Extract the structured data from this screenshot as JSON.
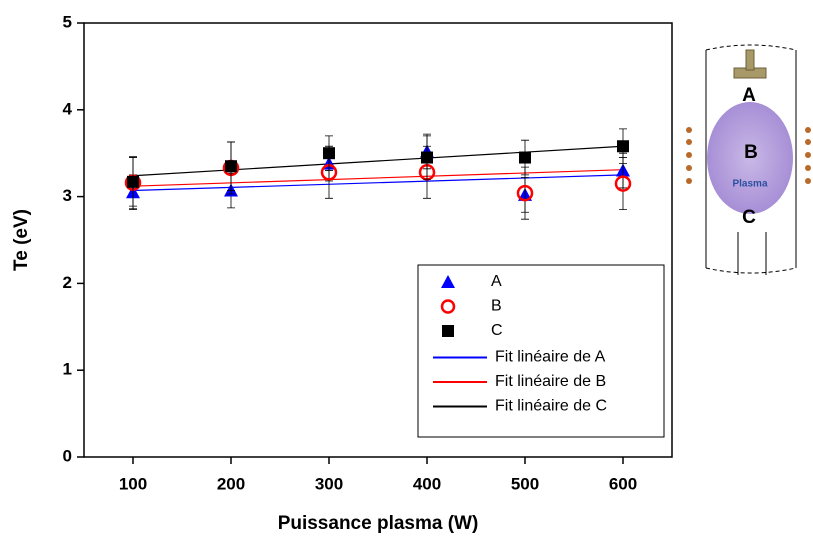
{
  "chart_data": {
    "type": "scatter",
    "x_label": "Puissance plasma (W)",
    "y_label": "Te (eV)",
    "x": [
      100,
      200,
      300,
      400,
      500,
      600
    ],
    "xlim": [
      50,
      650
    ],
    "xticks": [
      100,
      200,
      300,
      400,
      500,
      600
    ],
    "ylim": [
      0,
      5
    ],
    "yticks": [
      0,
      1,
      2,
      3,
      4,
      5
    ],
    "series": [
      {
        "name": "A",
        "color": "#0000ff",
        "marker": "triangle",
        "values": [
          3.05,
          3.07,
          3.38,
          3.52,
          3.02,
          3.3
        ],
        "errors": [
          0.2,
          0.2,
          0.2,
          0.2,
          0.2,
          0.2
        ]
      },
      {
        "name": "B",
        "color": "#ff0000",
        "marker": "circle",
        "values": [
          3.16,
          3.33,
          3.28,
          3.28,
          3.04,
          3.15
        ],
        "errors": [
          0.3,
          0.3,
          0.3,
          0.3,
          0.3,
          0.3
        ]
      },
      {
        "name": "C",
        "color": "#000000",
        "marker": "square",
        "values": [
          3.17,
          3.35,
          3.5,
          3.45,
          3.45,
          3.58
        ],
        "errors": [
          0.28,
          0.28,
          0.2,
          0.25,
          0.2,
          0.2
        ]
      }
    ],
    "fits": [
      {
        "name": "Fit linéaire de A",
        "color": "#0000ff",
        "x": [
          100,
          600
        ],
        "values": [
          3.07,
          3.25
        ]
      },
      {
        "name": "Fit linéaire de B",
        "color": "#ff0000",
        "x": [
          100,
          600
        ],
        "values": [
          3.12,
          3.31
        ]
      },
      {
        "name": "Fit linéaire de C",
        "color": "#000000",
        "x": [
          100,
          600
        ],
        "values": [
          3.24,
          3.58
        ]
      }
    ]
  },
  "inset": {
    "labels": [
      "A",
      "B",
      "Plasma",
      "C"
    ]
  }
}
